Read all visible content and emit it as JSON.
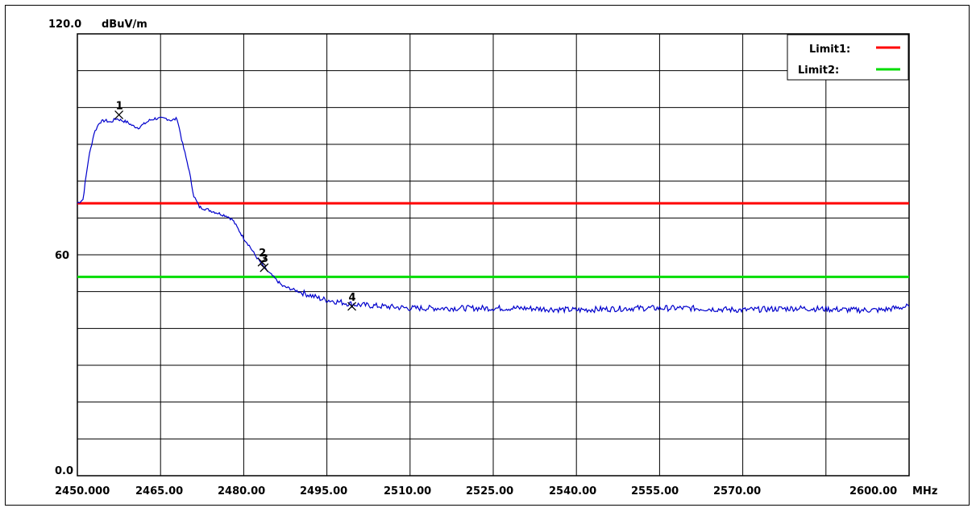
{
  "chart_data": {
    "type": "line",
    "y_top_label": "120.0",
    "y_unit": "dBuV/m",
    "y_mid_label": "60",
    "y_bottom_label": "0.0",
    "x_unit": "MHz",
    "ylim": [
      0,
      120
    ],
    "xlim": [
      2450,
      2600
    ],
    "x_tick_labels": [
      "2450.000",
      "2465.00",
      "2480.00",
      "2495.00",
      "2510.00",
      "2525.00",
      "2540.00",
      "2555.00",
      "2570.00",
      "2600.00"
    ],
    "legend": [
      {
        "name": "Limit1:",
        "color": "#ff0000"
      },
      {
        "name": "Limit2:",
        "color": "#00dd00"
      }
    ],
    "limits": [
      {
        "name": "Limit1",
        "value": 74,
        "color": "#ff0000"
      },
      {
        "name": "Limit2",
        "value": 54,
        "color": "#00dd00"
      }
    ],
    "markers": [
      {
        "label": "1",
        "x": 2457.5,
        "y": 98
      },
      {
        "label": "2",
        "x": 2483.3,
        "y": 58
      },
      {
        "label": "3",
        "x": 2483.7,
        "y": 56.5
      },
      {
        "label": "4",
        "x": 2499.5,
        "y": 46
      }
    ],
    "series": [
      {
        "color": "#0000cc",
        "x": [
          2450,
          2451,
          2452,
          2453,
          2454,
          2455,
          2456,
          2457,
          2458,
          2459,
          2460,
          2461,
          2462,
          2463,
          2464,
          2465,
          2466,
          2467,
          2468,
          2469,
          2470,
          2471,
          2472,
          2473,
          2474,
          2475,
          2476,
          2477,
          2478,
          2479,
          2480,
          2481,
          2482,
          2483,
          2484,
          2485,
          2486,
          2487,
          2488,
          2489,
          2490,
          2492,
          2494,
          2496,
          2498,
          2500,
          2505,
          2510,
          2520,
          2530,
          2540,
          2550,
          2560,
          2570,
          2580,
          2590,
          2595,
          2600
        ],
        "y": [
          74,
          75,
          86,
          93,
          96,
          96.5,
          96,
          97,
          96.5,
          96,
          95,
          94.5,
          95.5,
          96.5,
          97,
          97,
          97,
          96.5,
          97,
          90,
          84,
          76,
          73,
          72.5,
          72,
          71.5,
          71,
          70.5,
          69.5,
          67,
          64.5,
          62.5,
          60,
          58,
          56,
          54.5,
          53,
          51.5,
          51,
          50.5,
          50,
          49,
          48,
          47.5,
          47,
          46.5,
          46,
          45.5,
          45.5,
          45.5,
          45,
          45.5,
          45.5,
          45,
          45.5,
          45,
          45,
          46
        ]
      }
    ]
  }
}
